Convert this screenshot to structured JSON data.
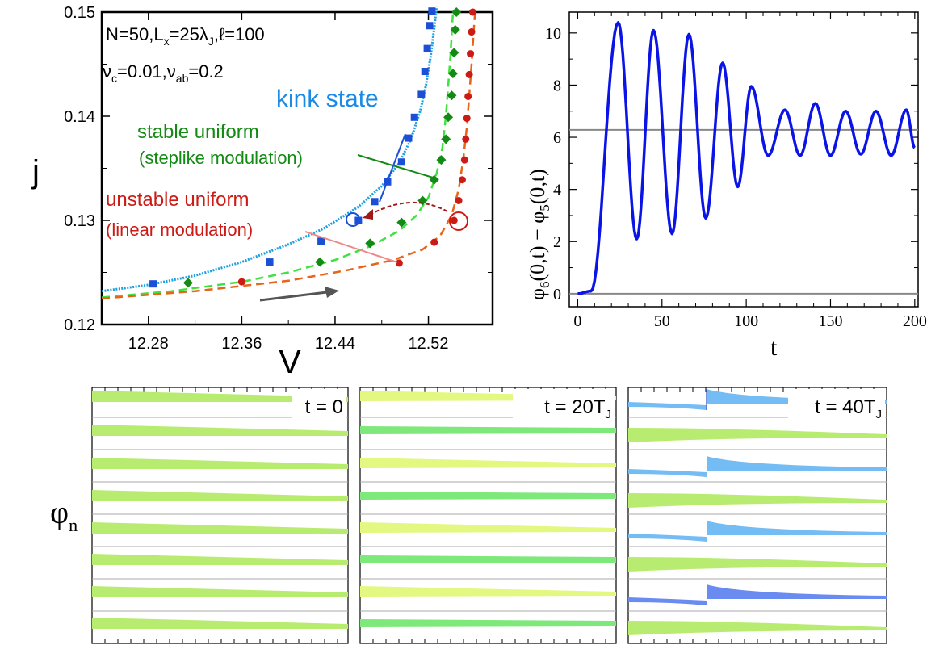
{
  "chart_data": [
    {
      "panel": "iv-curve",
      "type": "scatter",
      "xlabel": "V",
      "ylabel": "j",
      "xlim": [
        12.24,
        12.575
      ],
      "ylim": [
        0.12,
        0.15
      ],
      "xticks": [
        12.28,
        12.36,
        12.44,
        12.52
      ],
      "yticks": [
        0.12,
        0.13,
        0.14,
        0.15
      ],
      "params_line1": "N=50,L",
      "params_line1_sub": "x",
      "params_line1_b": "=25λ",
      "params_line1_b_sub": "J",
      "params_line1_c": ",ℓ=100",
      "params_line2_nu_c": "ν",
      "params_line2_nu_c_sub": "c",
      "params_line2_eq_c": "=0.01,",
      "params_line2_nu_ab": "ν",
      "params_line2_nu_ab_sub": "ab",
      "params_line2_eq_ab": "=0.2",
      "series": [
        {
          "name": "kink state",
          "color": "#1a4fd6",
          "curve": [
            [
              12.24,
              0.1232
            ],
            [
              12.28,
              0.1238
            ],
            [
              12.32,
              0.1247
            ],
            [
              12.36,
              0.126
            ],
            [
              12.4,
              0.1277
            ],
            [
              12.43,
              0.1292
            ],
            [
              12.46,
              0.1313
            ],
            [
              12.48,
              0.1333
            ],
            [
              12.495,
              0.1355
            ],
            [
              12.505,
              0.1378
            ],
            [
              12.513,
              0.1405
            ],
            [
              12.518,
              0.143
            ],
            [
              12.522,
              0.1458
            ],
            [
              12.525,
              0.1485
            ],
            [
              12.527,
              0.1505
            ]
          ],
          "points": [
            [
              12.284,
              0.1239
            ],
            [
              12.384,
              0.126
            ],
            [
              12.428,
              0.128
            ],
            [
              12.46,
              0.13
            ],
            [
              12.474,
              0.1318
            ],
            [
              12.485,
              0.1337
            ],
            [
              12.497,
              0.1356
            ],
            [
              12.503,
              0.1379
            ],
            [
              12.508,
              0.1399
            ],
            [
              12.514,
              0.1421
            ],
            [
              12.517,
              0.1443
            ],
            [
              12.519,
              0.1465
            ],
            [
              12.521,
              0.1487
            ],
            [
              12.523,
              0.1501
            ]
          ]
        },
        {
          "name": "stable uniform",
          "color": "#138a13",
          "sublabel": "(steplike modulation)",
          "curve": [
            [
              12.24,
              0.1226
            ],
            [
              12.3,
              0.1232
            ],
            [
              12.36,
              0.1241
            ],
            [
              12.4,
              0.125
            ],
            [
              12.44,
              0.1262
            ],
            [
              12.47,
              0.1275
            ],
            [
              12.495,
              0.129
            ],
            [
              12.51,
              0.1305
            ],
            [
              12.52,
              0.1322
            ],
            [
              12.527,
              0.1345
            ],
            [
              12.532,
              0.137
            ],
            [
              12.535,
              0.14
            ],
            [
              12.537,
              0.143
            ],
            [
              12.539,
              0.146
            ],
            [
              12.541,
              0.15
            ]
          ],
          "points": [
            [
              12.314,
              0.124
            ],
            [
              12.427,
              0.126
            ],
            [
              12.47,
              0.1278
            ],
            [
              12.497,
              0.1298
            ],
            [
              12.515,
              0.1319
            ],
            [
              12.525,
              0.1339
            ],
            [
              12.531,
              0.1358
            ],
            [
              12.535,
              0.1378
            ],
            [
              12.537,
              0.1399
            ],
            [
              12.54,
              0.142
            ],
            [
              12.541,
              0.1441
            ],
            [
              12.542,
              0.1461
            ],
            [
              12.543,
              0.1483
            ],
            [
              12.544,
              0.15
            ]
          ]
        },
        {
          "name": "unstable uniform",
          "color": "#cc1a14",
          "sublabel": "(linear modulation)",
          "curve": [
            [
              12.24,
              0.1225
            ],
            [
              12.32,
              0.1232
            ],
            [
              12.4,
              0.1242
            ],
            [
              12.45,
              0.1252
            ],
            [
              12.49,
              0.1262
            ],
            [
              12.515,
              0.1272
            ],
            [
              12.53,
              0.1285
            ],
            [
              12.54,
              0.1305
            ],
            [
              12.546,
              0.133
            ],
            [
              12.55,
              0.136
            ],
            [
              12.553,
              0.139
            ],
            [
              12.555,
              0.142
            ],
            [
              12.557,
              0.145
            ],
            [
              12.559,
              0.1485
            ],
            [
              12.56,
              0.15
            ]
          ],
          "points": [
            [
              12.36,
              0.1241
            ],
            [
              12.495,
              0.1259
            ],
            [
              12.525,
              0.1279
            ],
            [
              12.542,
              0.13
            ],
            [
              12.546,
              0.1319
            ],
            [
              12.549,
              0.1339
            ],
            [
              12.551,
              0.1358
            ],
            [
              12.552,
              0.1378
            ],
            [
              12.553,
              0.1398
            ],
            [
              12.554,
              0.1419
            ],
            [
              12.555,
              0.144
            ],
            [
              12.556,
              0.146
            ],
            [
              12.557,
              0.1481
            ],
            [
              12.558,
              0.15
            ]
          ]
        }
      ]
    },
    {
      "panel": "phase-difference",
      "type": "line",
      "xlabel": "t",
      "ylabel": "φ",
      "ylabel_sub1": "6",
      "ylabel_mid": "(0,t) − φ",
      "ylabel_sub2": "5",
      "ylabel_end": "(0,t)",
      "xlim": [
        -5,
        202
      ],
      "ylim": [
        -0.5,
        10.8
      ],
      "xticks": [
        0,
        50,
        100,
        150,
        200
      ],
      "yticks": [
        0,
        2,
        4,
        6,
        8,
        10
      ],
      "hlines": [
        0,
        6.283
      ],
      "color": "#0a14e6",
      "extrema": [
        [
          0,
          0
        ],
        [
          8,
          0.1
        ],
        [
          24,
          10.4
        ],
        [
          35,
          2.1
        ],
        [
          45,
          10.1
        ],
        [
          56,
          2.3
        ],
        [
          66,
          9.95
        ],
        [
          76,
          2.9
        ],
        [
          86,
          8.85
        ],
        [
          95,
          4.1
        ],
        [
          103,
          7.95
        ],
        [
          113,
          5.3
        ],
        [
          123,
          7.05
        ],
        [
          132,
          5.3
        ],
        [
          141,
          7.3
        ],
        [
          150,
          5.3
        ],
        [
          159,
          7.0
        ],
        [
          168,
          5.35
        ],
        [
          177,
          7.0
        ],
        [
          186,
          5.3
        ],
        [
          195,
          7.05
        ],
        [
          200,
          5.6
        ]
      ]
    }
  ],
  "annotations": {
    "kink_state": "kink state",
    "stable_uniform": "stable uniform",
    "steplike": "(steplike modulation)",
    "unstable_uniform": "unstable uniform",
    "linear": "(linear modulation)"
  },
  "snapshots": {
    "ylabel": "φ",
    "ylabel_sub": "n",
    "panels": [
      {
        "label": "t = 0",
        "label_sub": "",
        "kind": "uniform"
      },
      {
        "label": "t = 20T",
        "label_sub": "J",
        "kind": "mixed"
      },
      {
        "label": "t = 40T",
        "label_sub": "J",
        "kind": "kink"
      }
    ]
  },
  "colors": {
    "kink": "#1a4fd6",
    "kink_curve": "#1ca0e0",
    "stable": "#138a13",
    "stable_curve": "#3ee23e",
    "unstable": "#cc1a14",
    "unstable_curve": "#e86418",
    "green_fill": "#b8ec70",
    "yellow_fill": "#e2f880",
    "teal_fill": "#7ee87a",
    "blue_fill": "#74bcf4",
    "deep_blue_fill": "#6a8cf0"
  }
}
